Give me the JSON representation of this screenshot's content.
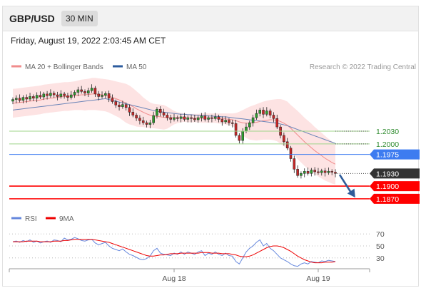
{
  "header": {
    "symbol": "GBP/USD",
    "timeframe": "30 MIN"
  },
  "datetime": "Friday, August 19, 2022 2:03:45 AM CET",
  "legend": [
    {
      "label": "MA 20 + Bollinger Bands",
      "color": "#f08c8c"
    },
    {
      "label": "MA 50",
      "color": "#2d5c9e"
    }
  ],
  "credit": "Research © 2022 Trading Central",
  "colors": {
    "up": "#2e9e2e",
    "down": "#c62828",
    "band_fill": "#fde3e3",
    "ma20": "#f08c8c",
    "ma50": "#6b85b8",
    "support": "#ff0000",
    "pivot_blue": "#3d7cf0",
    "resistance_green": "#9fd58a",
    "arrow": "#2e5b99"
  },
  "chart_data": [
    {
      "type": "candlestick",
      "ylim": [
        1.1858,
        1.2165
      ],
      "candle_count": 95,
      "x_tick_labels": [
        {
          "label": "Aug 18",
          "index": 47
        },
        {
          "label": "Aug 19",
          "index": 89
        }
      ],
      "price_levels": [
        {
          "value": 1.203,
          "label": "1.2030",
          "role": "resistance",
          "color": "#9fd58a",
          "text_color": "#2e8b2e"
        },
        {
          "value": 1.2,
          "label": "1.2000",
          "role": "resistance",
          "color": "#9fd58a",
          "text_color": "#2e8b2e"
        },
        {
          "value": 1.1975,
          "label": "1.1975",
          "role": "pivot",
          "color": "#3d7cf0",
          "text_color": "#ffffff"
        },
        {
          "value": 1.193,
          "label": "1.1930",
          "role": "last",
          "color": "#333333",
          "text_color": "#ffffff"
        },
        {
          "value": 1.19,
          "label": "1.1900",
          "role": "support",
          "color": "#ff0000",
          "text_color": "#ffffff"
        },
        {
          "value": 1.187,
          "label": "1.1870",
          "role": "support",
          "color": "#ff0000",
          "text_color": "#ffffff"
        }
      ],
      "close": [
        1.2105,
        1.2108,
        1.2103,
        1.211,
        1.2106,
        1.2112,
        1.2108,
        1.2115,
        1.2111,
        1.2118,
        1.2114,
        1.212,
        1.2116,
        1.2112,
        1.2118,
        1.2114,
        1.211,
        1.2116,
        1.2122,
        1.2128,
        1.2124,
        1.212,
        1.2126,
        1.2132,
        1.2118,
        1.2112,
        1.2115,
        1.2119,
        1.2108,
        1.21,
        1.2092,
        1.2088,
        1.2093,
        1.2086,
        1.2075,
        1.2068,
        1.2061,
        1.2055,
        1.205,
        1.2046,
        1.205,
        1.2067,
        1.2082,
        1.2074,
        1.2068,
        1.2062,
        1.2058,
        1.2062,
        1.206,
        1.2064,
        1.2058,
        1.2062,
        1.206,
        1.2057,
        1.2062,
        1.2066,
        1.2058,
        1.2062,
        1.206,
        1.2064,
        1.2058,
        1.2052,
        1.2056,
        1.205,
        1.2048,
        1.202,
        1.2008,
        1.203,
        1.204,
        1.205,
        1.2062,
        1.2072,
        1.208,
        1.207,
        1.2078,
        1.2068,
        1.206,
        1.204,
        1.202,
        1.2005,
        1.199,
        1.1965,
        1.194,
        1.1925,
        1.193,
        1.1935,
        1.193,
        1.1938,
        1.1934,
        1.1932,
        1.1936,
        1.1932,
        1.1935,
        1.1933,
        1.193
      ],
      "ma20": [
        1.2096,
        1.2097,
        1.2098,
        1.2099,
        1.21,
        1.2101,
        1.2102,
        1.2103,
        1.2104,
        1.2106,
        1.2107,
        1.2108,
        1.2109,
        1.211,
        1.2111,
        1.2112,
        1.2112,
        1.2113,
        1.2114,
        1.2115,
        1.2116,
        1.2116,
        1.2117,
        1.2118,
        1.2118,
        1.2117,
        1.2116,
        1.2115,
        1.2113,
        1.211,
        1.2107,
        1.2104,
        1.21,
        1.2096,
        1.2092,
        1.2088,
        1.2083,
        1.2079,
        1.2075,
        1.2071,
        1.2068,
        1.2066,
        1.2065,
        1.2064,
        1.2063,
        1.2062,
        1.2062,
        1.2062,
        1.2062,
        1.2062,
        1.2062,
        1.2061,
        1.2061,
        1.2061,
        1.2061,
        1.2061,
        1.2061,
        1.2061,
        1.2061,
        1.2061,
        1.206,
        1.206,
        1.2059,
        1.2058,
        1.2057,
        1.2055,
        1.2052,
        1.205,
        1.2049,
        1.2049,
        1.205,
        1.2051,
        1.2053,
        1.2055,
        1.2056,
        1.2057,
        1.2057,
        1.2056,
        1.2053,
        1.2049,
        1.2044,
        1.2037,
        1.2029,
        1.2021,
        1.2013,
        1.2005,
        1.1998,
        1.1991,
        1.1984,
        1.1978,
        1.1972,
        1.1966,
        1.1961,
        1.1956,
        1.1952
      ],
      "bollinger_upper": [
        1.213,
        1.2131,
        1.2132,
        1.2133,
        1.2134,
        1.2135,
        1.2136,
        1.2137,
        1.2138,
        1.214,
        1.2141,
        1.2142,
        1.2143,
        1.2144,
        1.2145,
        1.2146,
        1.2146,
        1.2147,
        1.2148,
        1.215,
        1.2152,
        1.2153,
        1.2154,
        1.2156,
        1.2156,
        1.2155,
        1.2154,
        1.2153,
        1.2152,
        1.215,
        1.2148,
        1.2146,
        1.2144,
        1.2142,
        1.2138,
        1.2132,
        1.2125,
        1.2118,
        1.211,
        1.2104,
        1.2098,
        1.2095,
        1.2094,
        1.2093,
        1.2092,
        1.2088,
        1.2083,
        1.2078,
        1.2075,
        1.2073,
        1.2072,
        1.2071,
        1.2071,
        1.2071,
        1.2071,
        1.2072,
        1.2072,
        1.2072,
        1.2072,
        1.2072,
        1.2072,
        1.2072,
        1.2072,
        1.2072,
        1.2072,
        1.2073,
        1.2076,
        1.208,
        1.2084,
        1.2088,
        1.2091,
        1.2094,
        1.2097,
        1.21,
        1.2102,
        1.2104,
        1.2105,
        1.2106,
        1.2106,
        1.2104,
        1.21,
        1.2092,
        1.2085,
        1.2078,
        1.207,
        1.2062,
        1.2055,
        1.2048,
        1.204,
        1.2033,
        1.2026,
        1.2019,
        1.2012,
        1.2006,
        1.2
      ],
      "bollinger_lower": [
        1.2062,
        1.2063,
        1.2064,
        1.2065,
        1.2066,
        1.2067,
        1.2068,
        1.2069,
        1.207,
        1.2072,
        1.2073,
        1.2074,
        1.2075,
        1.2076,
        1.2077,
        1.2078,
        1.2078,
        1.2079,
        1.208,
        1.208,
        1.208,
        1.2079,
        1.208,
        1.208,
        1.208,
        1.2079,
        1.2078,
        1.2077,
        1.2074,
        1.207,
        1.2066,
        1.2062,
        1.2056,
        1.205,
        1.2046,
        1.2044,
        1.2041,
        1.204,
        1.204,
        1.2038,
        1.2038,
        1.2037,
        1.2036,
        1.2035,
        1.2034,
        1.2036,
        1.2041,
        1.2046,
        1.2049,
        1.2051,
        1.2052,
        1.2051,
        1.2051,
        1.2051,
        1.2051,
        1.205,
        1.205,
        1.205,
        1.205,
        1.205,
        1.2048,
        1.2048,
        1.2046,
        1.2044,
        1.2042,
        1.2037,
        1.2028,
        1.202,
        1.2014,
        1.201,
        1.2009,
        1.2008,
        1.2009,
        1.201,
        1.201,
        1.201,
        1.2009,
        1.2006,
        1.2,
        1.1994,
        1.1988,
        1.1982,
        1.1973,
        1.1964,
        1.1956,
        1.1948,
        1.1941,
        1.1934,
        1.1928,
        1.1923,
        1.1918,
        1.1913,
        1.191,
        1.1906,
        1.1904
      ],
      "ma50": [
        1.208,
        1.2081,
        1.2082,
        1.2083,
        1.2084,
        1.2085,
        1.2086,
        1.2087,
        1.2088,
        1.2089,
        1.209,
        1.2091,
        1.2092,
        1.2093,
        1.2094,
        1.2095,
        1.2096,
        1.2097,
        1.2098,
        1.2099,
        1.21,
        1.2101,
        1.2102,
        1.2103,
        1.2104,
        1.2105,
        1.2106,
        1.2107,
        1.2105,
        1.2103,
        1.2101,
        1.2099,
        1.2097,
        1.2095,
        1.2093,
        1.2091,
        1.2089,
        1.2087,
        1.2085,
        1.2083,
        1.2081,
        1.2079,
        1.2077,
        1.2076,
        1.2075,
        1.2074,
        1.2073,
        1.2072,
        1.2071,
        1.207,
        1.207,
        1.2069,
        1.2069,
        1.2068,
        1.2068,
        1.2067,
        1.2067,
        1.2066,
        1.2066,
        1.2065,
        1.2065,
        1.2064,
        1.2064,
        1.2063,
        1.2062,
        1.2061,
        1.206,
        1.2059,
        1.2058,
        1.2057,
        1.2056,
        1.2055,
        1.2054,
        1.2053,
        1.2052,
        1.2051,
        1.205,
        1.2049,
        1.2047,
        1.2045,
        1.2043,
        1.204,
        1.2037,
        1.2034,
        1.2031,
        1.2028,
        1.2025,
        1.2022,
        1.2019,
        1.2016,
        1.2013,
        1.201,
        1.2007,
        1.2004,
        1.2001
      ],
      "forecast_arrow": {
        "from_index": 94,
        "from_value": 1.1927,
        "to_index": 100,
        "to_value": 1.1873
      }
    },
    {
      "type": "line",
      "title": "RSI",
      "ylim": [
        12,
        82
      ],
      "y_ticks": [
        70,
        50,
        30
      ],
      "series": [
        {
          "name": "RSI",
          "color": "#6688dd",
          "values": [
            57,
            58,
            56,
            59,
            57,
            60,
            56,
            58,
            55,
            57,
            58,
            56,
            60,
            59,
            57,
            63,
            60,
            61,
            64,
            62,
            59,
            58,
            60,
            61,
            55,
            52,
            54,
            56,
            50,
            46,
            44,
            42,
            45,
            40,
            36,
            34,
            31,
            28,
            27,
            29,
            33,
            42,
            46,
            38,
            36,
            35,
            34,
            38,
            36,
            40,
            36,
            40,
            38,
            36,
            40,
            42,
            34,
            38,
            36,
            40,
            36,
            34,
            38,
            34,
            33,
            24,
            20,
            30,
            40,
            46,
            50,
            56,
            60,
            50,
            54,
            46,
            42,
            36,
            30,
            27,
            24,
            20,
            17,
            16,
            20,
            22,
            20,
            24,
            23,
            22,
            25,
            24,
            26,
            25,
            24
          ]
        },
        {
          "name": "9MA",
          "color": "#ee0000",
          "values": [
            57,
            57,
            57,
            57,
            58,
            58,
            58,
            58,
            57,
            57,
            57,
            57,
            58,
            58,
            58,
            59,
            59,
            60,
            61,
            61,
            61,
            61,
            61,
            61,
            60,
            59,
            58,
            57,
            56,
            54,
            52,
            50,
            48,
            46,
            44,
            42,
            40,
            38,
            36,
            34,
            33,
            33,
            34,
            35,
            35,
            36,
            37,
            37,
            37,
            38,
            38,
            38,
            38,
            38,
            38,
            39,
            39,
            39,
            38,
            38,
            38,
            37,
            37,
            37,
            36,
            35,
            33,
            32,
            32,
            33,
            35,
            38,
            41,
            44,
            47,
            49,
            50,
            50,
            49,
            47,
            44,
            41,
            37,
            33,
            30,
            27,
            25,
            23,
            22,
            22,
            22,
            23,
            23,
            23,
            24
          ]
        }
      ]
    }
  ]
}
